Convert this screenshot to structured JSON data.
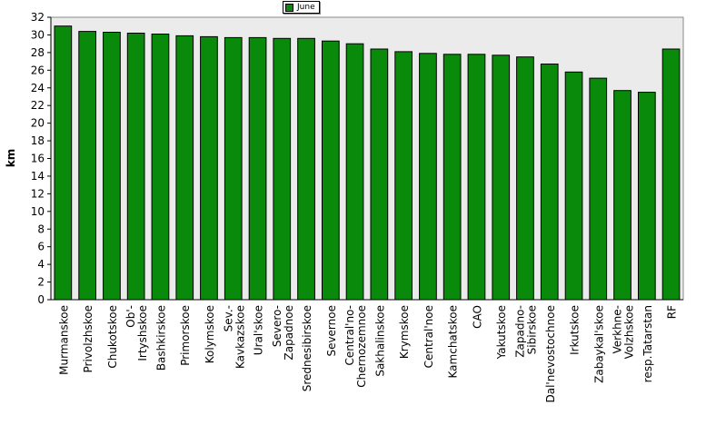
{
  "chart_data": {
    "type": "bar",
    "title": "",
    "xlabel": "",
    "ylabel": "km",
    "ylim": [
      0,
      32
    ],
    "ytick_step": 2,
    "grid": false,
    "legend_position": "top-center",
    "colors": {
      "bar": "#0a8a0a",
      "bar_edge": "#000000",
      "plot_bg": "#ebebeb"
    },
    "categories": [
      [
        "Murmanskoe"
      ],
      [
        "Privolzhskoe"
      ],
      [
        "Chukotskoe"
      ],
      [
        "Ob'-",
        "Irtyshskoe"
      ],
      [
        "Bashkirskoe"
      ],
      [
        "Primorskoe"
      ],
      [
        "Kolymskoe"
      ],
      [
        "Sev.-",
        "Kavkazskoe"
      ],
      [
        "Ural'skoe"
      ],
      [
        "Severo-",
        "Zapadnoe"
      ],
      [
        "Srednesibirskoe"
      ],
      [
        "Severnoe"
      ],
      [
        "Central'no-",
        "Chernozemnoe"
      ],
      [
        "Sakhalinskoe"
      ],
      [
        "Krymskoe"
      ],
      [
        "Central'noe"
      ],
      [
        "Kamchatskoe"
      ],
      [
        "CAO"
      ],
      [
        "Yakutskoe"
      ],
      [
        "Zapadno-",
        "Sibirskoe"
      ],
      [
        "Dal'nevostochnoe"
      ],
      [
        "Irkutskoe"
      ],
      [
        "Zabaykal'skoe"
      ],
      [
        "Verkhne-",
        "Volzhskoe"
      ],
      [
        "resp.Tatarstan"
      ],
      [
        "RF"
      ]
    ],
    "series": [
      {
        "name": "June",
        "values": [
          31.0,
          30.4,
          30.3,
          30.2,
          30.1,
          29.9,
          29.8,
          29.7,
          29.7,
          29.6,
          29.6,
          29.3,
          29.0,
          28.4,
          28.1,
          27.9,
          27.8,
          27.8,
          27.7,
          27.5,
          26.7,
          25.8,
          25.1,
          23.7,
          23.5,
          28.4
        ]
      }
    ]
  }
}
